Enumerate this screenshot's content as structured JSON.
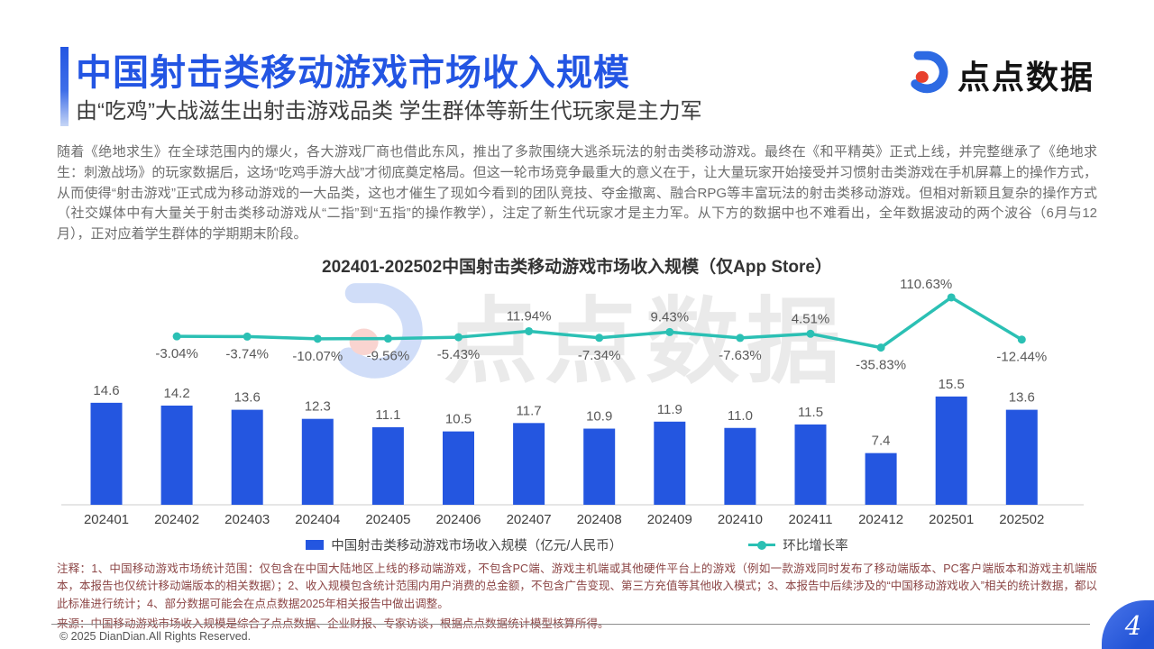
{
  "header": {
    "title": "中国射击类移动游戏市场收入规模",
    "subtitle": "由“吃鸡”大战滋生出射击游戏品类 学生群体等新生代玩家是主力军",
    "logo_text": "点点数据"
  },
  "intro": "随着《绝地求生》在全球范围内的爆火，各大游戏厂商也借此东风，推出了多款围绕大逃杀玩法的射击类移动游戏。最终在《和平精英》正式上线，并完整继承了《绝地求生：刺激战场》的玩家数据后，这场“吃鸡手游大战”才彻底奠定格局。但这一轮市场竞争最重大的意义在于，让大量玩家开始接受并习惯射击类游戏在手机屏幕上的操作方式，从而使得“射击游戏”正式成为移动游戏的一大品类，这也才催生了现如今看到的团队竞技、夺金撤离、融合RPG等丰富玩法的射击类移动游戏。但相对新颖且复杂的操作方式（社交媒体中有大量关于射击类移动游戏从“二指”到“五指”的操作教学），注定了新生代玩家才是主力军。从下方的数据中也不难看出，全年数据波动的两个波谷（6月与12月），正对应着学生群体的学期期末阶段。",
  "chart_data": {
    "type": "bar",
    "title": "202401-202502中国射击类移动游戏市场收入规模（仅App Store）",
    "categories": [
      "202401",
      "202402",
      "202403",
      "202404",
      "202405",
      "202406",
      "202407",
      "202408",
      "202409",
      "202410",
      "202411",
      "202412",
      "202501",
      "202502"
    ],
    "series": [
      {
        "name": "中国射击类移动游戏市场收入规模（亿元/人民币）",
        "type": "bar",
        "color": "#2456e0",
        "values": [
          14.6,
          14.2,
          13.6,
          12.3,
          11.1,
          10.5,
          11.7,
          10.9,
          11.9,
          11.0,
          11.5,
          7.4,
          15.5,
          13.6
        ]
      },
      {
        "name": "环比增长率",
        "type": "line",
        "color": "#2bc0b4",
        "unit": "%",
        "values": [
          null,
          -3.04,
          -3.74,
          -10.07,
          -9.56,
          -5.43,
          11.94,
          -7.34,
          9.43,
          -7.63,
          4.51,
          -35.83,
          110.63,
          -12.44
        ]
      }
    ],
    "xlabel": "",
    "ylabel": "",
    "grid": false,
    "legend_position": "bottom"
  },
  "watermark": {
    "text": "点点数据"
  },
  "footnotes": {
    "notes": "注释：1、中国移动游戏市场统计范围：仅包含在中国大陆地区上线的移动端游戏，不包含PC端、游戏主机端或其他硬件平台上的游戏（例如一款游戏同时发布了移动端版本、PC客户端版本和游戏主机端版本，本报告也仅统计移动端版本的相关数据）；2、收入规模包含统计范围内用户消费的总金额，不包含广告变现、第三方充值等其他收入模式；3、本报告中后续涉及的“中国移动游戏收入”相关的统计数据，都以此标准进行统计；4、部分数据可能会在点点数据2025年相关报告中做出调整。",
    "source": "来源：中国移动游戏市场收入规模是综合了点点数据、企业财报、专家访谈，根据点点数据统计模型核算所得。"
  },
  "footer": {
    "copyright": "© 2025 DianDian.All Rights Reserved.",
    "page_number": "4"
  }
}
